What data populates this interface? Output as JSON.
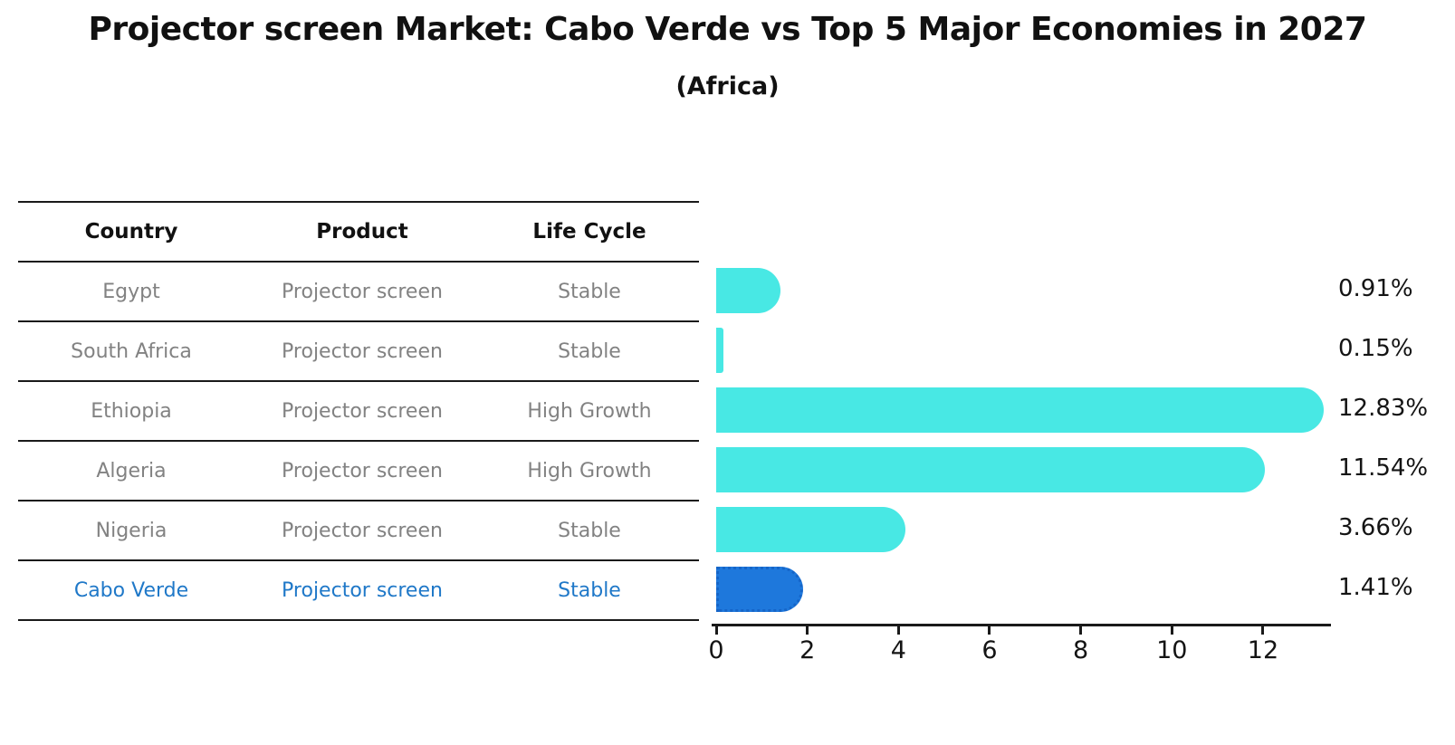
{
  "title": "Projector screen Market: Cabo Verde vs Top 5 Major Economies in 2027",
  "subtitle": "(Africa)",
  "table": {
    "headers": [
      "Country",
      "Product",
      "Life Cycle"
    ],
    "rows": [
      {
        "country": "Egypt",
        "product": "Projector screen",
        "life_cycle": "Stable",
        "highlighted": false
      },
      {
        "country": "South Africa",
        "product": "Projector screen",
        "life_cycle": "Stable",
        "highlighted": false
      },
      {
        "country": "Ethiopia",
        "product": "Projector screen",
        "life_cycle": "High Growth",
        "highlighted": false
      },
      {
        "country": "Algeria",
        "product": "Projector screen",
        "life_cycle": "High Growth",
        "highlighted": false
      },
      {
        "country": "Nigeria",
        "product": "Projector screen",
        "life_cycle": "Stable",
        "highlighted": false
      },
      {
        "country": "Cabo Verde",
        "product": "Projector screen",
        "life_cycle": "Stable",
        "highlighted": true
      }
    ]
  },
  "chart_data": {
    "type": "bar",
    "orientation": "horizontal",
    "title": "Projector screen Market: Cabo Verde vs Top 5 Major Economies in 2027",
    "subtitle": "(Africa)",
    "categories": [
      "Egypt",
      "South Africa",
      "Ethiopia",
      "Algeria",
      "Nigeria",
      "Cabo Verde"
    ],
    "values": [
      0.91,
      0.15,
      12.83,
      11.54,
      3.66,
      1.41
    ],
    "value_labels": [
      "0.91%",
      "0.15%",
      "12.83%",
      "11.54%",
      "3.66%",
      "1.41%"
    ],
    "x_ticks": [
      0,
      2,
      4,
      6,
      8,
      10,
      12
    ],
    "xlim": [
      0,
      13.5
    ],
    "xlabel": "",
    "ylabel": "",
    "grid": false,
    "legend": false,
    "bar_color": "#48E8E4",
    "highlight_color": "#1E78DC",
    "highlight_index": 5
  }
}
